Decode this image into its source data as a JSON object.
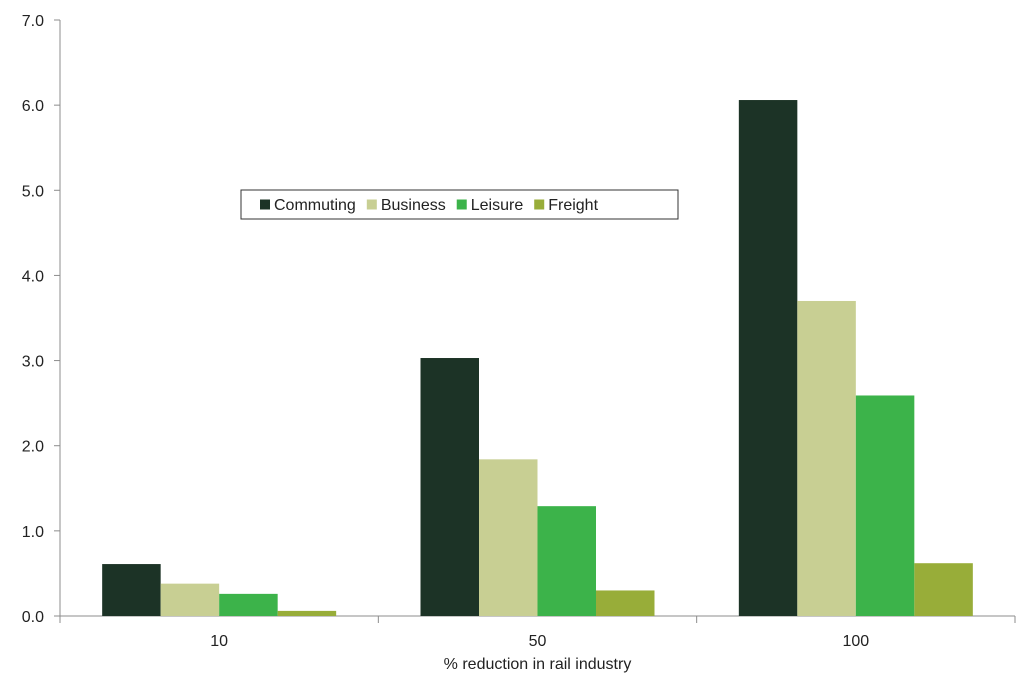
{
  "chart_data": {
    "type": "bar",
    "title": "",
    "xlabel": "% reduction in rail industry",
    "ylabel": "",
    "categories": [
      "10",
      "50",
      "100"
    ],
    "ylim": [
      0,
      7
    ],
    "yticks": [
      "0.0",
      "1.0",
      "2.0",
      "3.0",
      "4.0",
      "5.0",
      "6.0",
      "7.0"
    ],
    "grid": false,
    "legend_position": "center-left",
    "series": [
      {
        "name": "Commuting",
        "color": "#1c3326",
        "values": [
          0.61,
          3.03,
          6.06
        ]
      },
      {
        "name": "Business",
        "color": "#c8cf93",
        "values": [
          0.38,
          1.84,
          3.7
        ]
      },
      {
        "name": "Leisure",
        "color": "#3cb34a",
        "values": [
          0.26,
          1.29,
          2.59
        ]
      },
      {
        "name": "Freight",
        "color": "#98ad39",
        "values": [
          0.06,
          0.3,
          0.62
        ]
      }
    ]
  }
}
